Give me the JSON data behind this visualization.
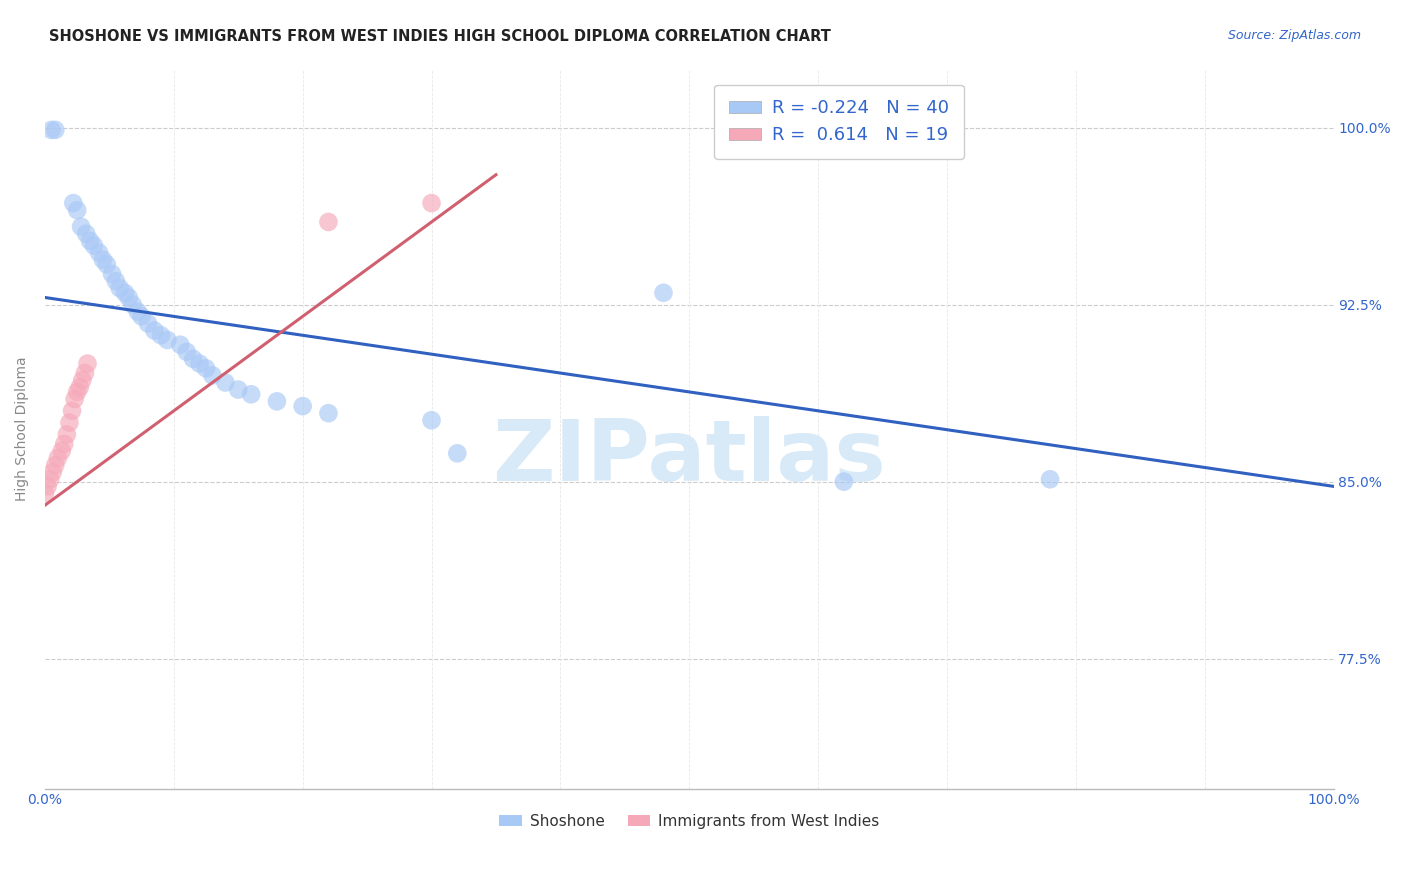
{
  "title": "SHOSHONE VS IMMIGRANTS FROM WEST INDIES HIGH SCHOOL DIPLOMA CORRELATION CHART",
  "source": "Source: ZipAtlas.com",
  "ylabel": "High School Diploma",
  "shoshone_color": "#a8c8f5",
  "westindies_color": "#f5a8b8",
  "shoshone_line_color": "#3060c0",
  "westindies_line_color": "#d06070",
  "watermark_text": "ZIPatlas",
  "watermark_color": "#d8eaf8",
  "background_color": "#ffffff",
  "xlim": [
    0.0,
    1.0
  ],
  "ylim": [
    0.72,
    1.025
  ],
  "right_yticks": [
    1.0,
    0.925,
    0.85,
    0.775
  ],
  "right_yticklabels": [
    "100.0%",
    "92.5%",
    "85.0%",
    "77.5%"
  ],
  "title_fontsize": 10.5,
  "source_fontsize": 9,
  "tick_fontsize": 10,
  "legend_fontsize": 13,
  "marker_size": 180,
  "marker_alpha": 0.65,
  "shoshone_x": [
    0.005,
    0.008,
    0.022,
    0.025,
    0.028,
    0.032,
    0.035,
    0.038,
    0.042,
    0.045,
    0.048,
    0.052,
    0.055,
    0.058,
    0.062,
    0.065,
    0.068,
    0.072,
    0.075,
    0.08,
    0.085,
    0.09,
    0.095,
    0.105,
    0.11,
    0.115,
    0.12,
    0.125,
    0.13,
    0.14,
    0.15,
    0.16,
    0.18,
    0.2,
    0.22,
    0.3,
    0.32,
    0.48,
    0.62,
    0.78
  ],
  "shoshone_y": [
    0.999,
    0.999,
    0.968,
    0.965,
    0.958,
    0.955,
    0.952,
    0.95,
    0.947,
    0.944,
    0.942,
    0.938,
    0.935,
    0.932,
    0.93,
    0.928,
    0.925,
    0.922,
    0.92,
    0.917,
    0.914,
    0.912,
    0.91,
    0.908,
    0.905,
    0.902,
    0.9,
    0.898,
    0.895,
    0.892,
    0.889,
    0.887,
    0.884,
    0.882,
    0.879,
    0.876,
    0.862,
    0.93,
    0.85,
    0.851
  ],
  "westindies_x": [
    0.0,
    0.002,
    0.004,
    0.006,
    0.008,
    0.01,
    0.013,
    0.015,
    0.017,
    0.019,
    0.021,
    0.023,
    0.025,
    0.027,
    0.029,
    0.031,
    0.033,
    0.22,
    0.3
  ],
  "westindies_y": [
    0.845,
    0.848,
    0.851,
    0.854,
    0.857,
    0.86,
    0.863,
    0.866,
    0.87,
    0.875,
    0.88,
    0.885,
    0.888,
    0.89,
    0.893,
    0.896,
    0.9,
    0.96,
    0.968
  ],
  "shoshone_trendline_x": [
    0.0,
    1.0
  ],
  "shoshone_trendline_y": [
    0.928,
    0.848
  ],
  "westindies_trendline_x": [
    0.0,
    0.35
  ],
  "westindies_trendline_y": [
    0.84,
    0.98
  ]
}
